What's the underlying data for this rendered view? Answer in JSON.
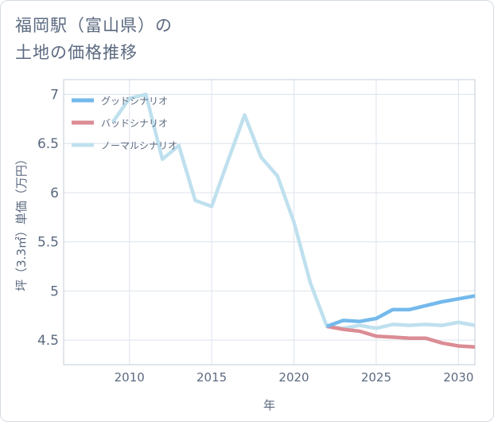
{
  "chart_data": {
    "type": "line",
    "title_lines": [
      "福岡駅（富山県）の",
      "土地の価格推移"
    ],
    "xlabel": "年",
    "ylabel": "坪（3.3㎡）単価（万円）",
    "xlim": [
      2006,
      2031
    ],
    "ylim": [
      4.25,
      7.15
    ],
    "xticks": [
      2010,
      2015,
      2020,
      2025,
      2030
    ],
    "yticks": [
      4.5,
      5,
      5.5,
      6,
      6.5,
      7
    ],
    "grid": true,
    "legend_position": "top-left",
    "series": [
      {
        "name": "グッドシナリオ",
        "color": "#74b9ec",
        "x": [
          2022,
          2023,
          2024,
          2025,
          2026,
          2027,
          2028,
          2029,
          2030,
          2031
        ],
        "y": [
          4.64,
          4.7,
          4.69,
          4.72,
          4.81,
          4.81,
          4.85,
          4.89,
          4.92,
          4.95
        ]
      },
      {
        "name": "バッドシナリオ",
        "color": "#db8c94",
        "x": [
          2022,
          2023,
          2024,
          2025,
          2026,
          2027,
          2028,
          2029,
          2030,
          2031
        ],
        "y": [
          4.64,
          4.61,
          4.59,
          4.54,
          4.53,
          4.52,
          4.52,
          4.47,
          4.44,
          4.43
        ]
      },
      {
        "name": "ノーマルシナリオ",
        "color": "#bfe0ee",
        "x": [
          2009,
          2010,
          2011,
          2012,
          2013,
          2014,
          2015,
          2016,
          2017,
          2018,
          2019,
          2020,
          2021,
          2022,
          2023,
          2024,
          2025,
          2026,
          2027,
          2028,
          2029,
          2030,
          2031
        ],
        "y": [
          6.72,
          6.96,
          7.0,
          6.34,
          6.48,
          5.92,
          5.86,
          6.33,
          6.79,
          6.36,
          6.17,
          5.7,
          5.08,
          4.64,
          4.62,
          4.65,
          4.62,
          4.66,
          4.65,
          4.66,
          4.65,
          4.68,
          4.65
        ]
      }
    ]
  }
}
